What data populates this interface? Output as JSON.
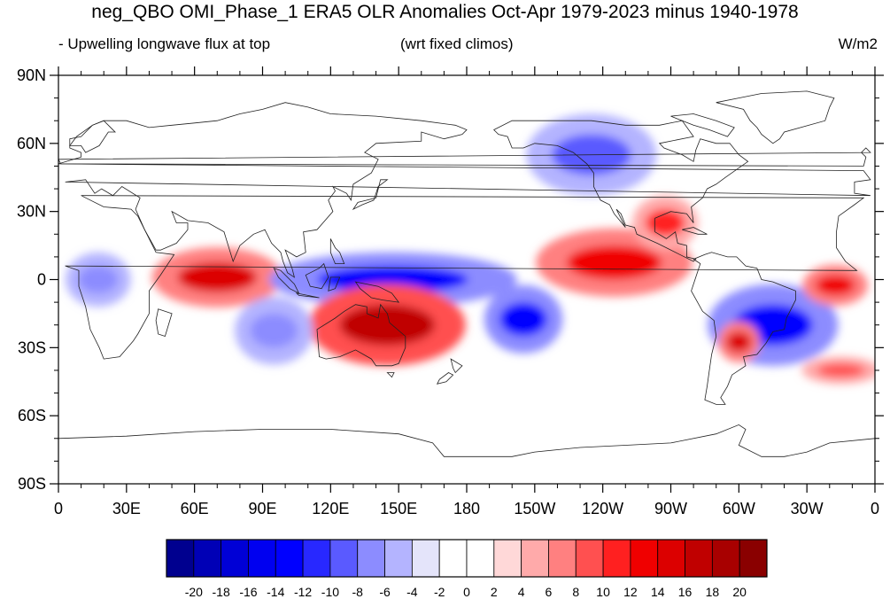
{
  "title": "neg_QBO OMI_Phase_1 ERA5 OLR Anomalies Oct-Apr 1979-2023 minus 1940-1978",
  "subtitle_left": "- Upwelling longwave flux at top",
  "subtitle_center": "(wrt fixed climos)",
  "units": "W/m2",
  "lat_ticks": [
    {
      "lat": 90,
      "label": "90N"
    },
    {
      "lat": 60,
      "label": "60N"
    },
    {
      "lat": 30,
      "label": "30N"
    },
    {
      "lat": 0,
      "label": "0"
    },
    {
      "lat": -30,
      "label": "30S"
    },
    {
      "lat": -60,
      "label": "60S"
    },
    {
      "lat": -90,
      "label": "90S"
    }
  ],
  "lon_ticks": [
    {
      "lon": 0,
      "label": "0"
    },
    {
      "lon": 30,
      "label": "30E"
    },
    {
      "lon": 60,
      "label": "60E"
    },
    {
      "lon": 90,
      "label": "90E"
    },
    {
      "lon": 120,
      "label": "120E"
    },
    {
      "lon": 150,
      "label": "150E"
    },
    {
      "lon": 180,
      "label": "180"
    },
    {
      "lon": 210,
      "label": "150W"
    },
    {
      "lon": 240,
      "label": "120W"
    },
    {
      "lon": 270,
      "label": "90W"
    },
    {
      "lon": 300,
      "label": "60W"
    },
    {
      "lon": 330,
      "label": "30W"
    },
    {
      "lon": 360,
      "label": "0"
    }
  ],
  "colorbar": {
    "colors": [
      "#00008f",
      "#0000b6",
      "#0000d6",
      "#0000f0",
      "#0000ff",
      "#2828ff",
      "#5a5aff",
      "#8c8cff",
      "#b4b4ff",
      "#e4e4fa",
      "#ffffff",
      "#ffffff",
      "#ffd8d8",
      "#ffaaaa",
      "#ff8080",
      "#ff5050",
      "#ff2020",
      "#f00000",
      "#dc0000",
      "#c00000",
      "#a80000",
      "#8a0000"
    ],
    "labels": [
      "-20",
      "-18",
      "-16",
      "-14",
      "-12",
      "-10",
      "-8",
      "-6",
      "-4",
      "-2",
      "0",
      "2",
      "4",
      "6",
      "8",
      "10",
      "12",
      "14",
      "16",
      "18",
      "20"
    ]
  },
  "chart_data": {
    "type": "heatmap",
    "field": "OLR anomaly",
    "units": "W/m2",
    "levels": [
      -20,
      -18,
      -16,
      -14,
      -12,
      -10,
      -8,
      -6,
      -4,
      -2,
      0,
      2,
      4,
      6,
      8,
      10,
      12,
      14,
      16,
      18,
      20
    ],
    "lon_range": [
      0,
      360
    ],
    "lat_range": [
      -90,
      90
    ],
    "anomaly_regions": [
      {
        "name": "tropical-indian-ocean-positive",
        "lon": [
          45,
          95
        ],
        "lat": [
          -10,
          12
        ],
        "value": 14
      },
      {
        "name": "maritime-continent-west-pacific-negative",
        "lon": [
          100,
          195
        ],
        "lat": [
          -10,
          10
        ],
        "value": -14
      },
      {
        "name": "northern-australia-positive",
        "lon": [
          115,
          175
        ],
        "lat": [
          -35,
          -5
        ],
        "value": 16
      },
      {
        "name": "south-pacific-negative",
        "lon": [
          190,
          220
        ],
        "lat": [
          -30,
          -5
        ],
        "value": -14
      },
      {
        "name": "east-pacific-positive",
        "lon": [
          215,
          275
        ],
        "lat": [
          -5,
          20
        ],
        "value": 12
      },
      {
        "name": "south-america-atlantic-negative",
        "lon": [
          290,
          340
        ],
        "lat": [
          -35,
          -5
        ],
        "value": -14
      },
      {
        "name": "south-brazil-positive",
        "lon": [
          292,
          308
        ],
        "lat": [
          -35,
          -20
        ],
        "value": 14
      },
      {
        "name": "alaska-negative",
        "lon": [
          210,
          260
        ],
        "lat": [
          40,
          70
        ],
        "value": -10
      },
      {
        "name": "mexico-gulf-positive",
        "lon": [
          255,
          280
        ],
        "lat": [
          15,
          35
        ],
        "value": 10
      },
      {
        "name": "equatorial-atlantic-positive",
        "lon": [
          330,
          355
        ],
        "lat": [
          -10,
          5
        ],
        "value": 12
      },
      {
        "name": "equatorial-africa-negative",
        "lon": [
          5,
          30
        ],
        "lat": [
          -10,
          10
        ],
        "value": -8
      },
      {
        "name": "south-indian-ocean-negative",
        "lon": [
          80,
          110
        ],
        "lat": [
          -35,
          -10
        ],
        "value": -8
      },
      {
        "name": "southwest-atlantic-positive",
        "lon": [
          330,
          360
        ],
        "lat": [
          -45,
          -35
        ],
        "value": 8
      }
    ]
  }
}
